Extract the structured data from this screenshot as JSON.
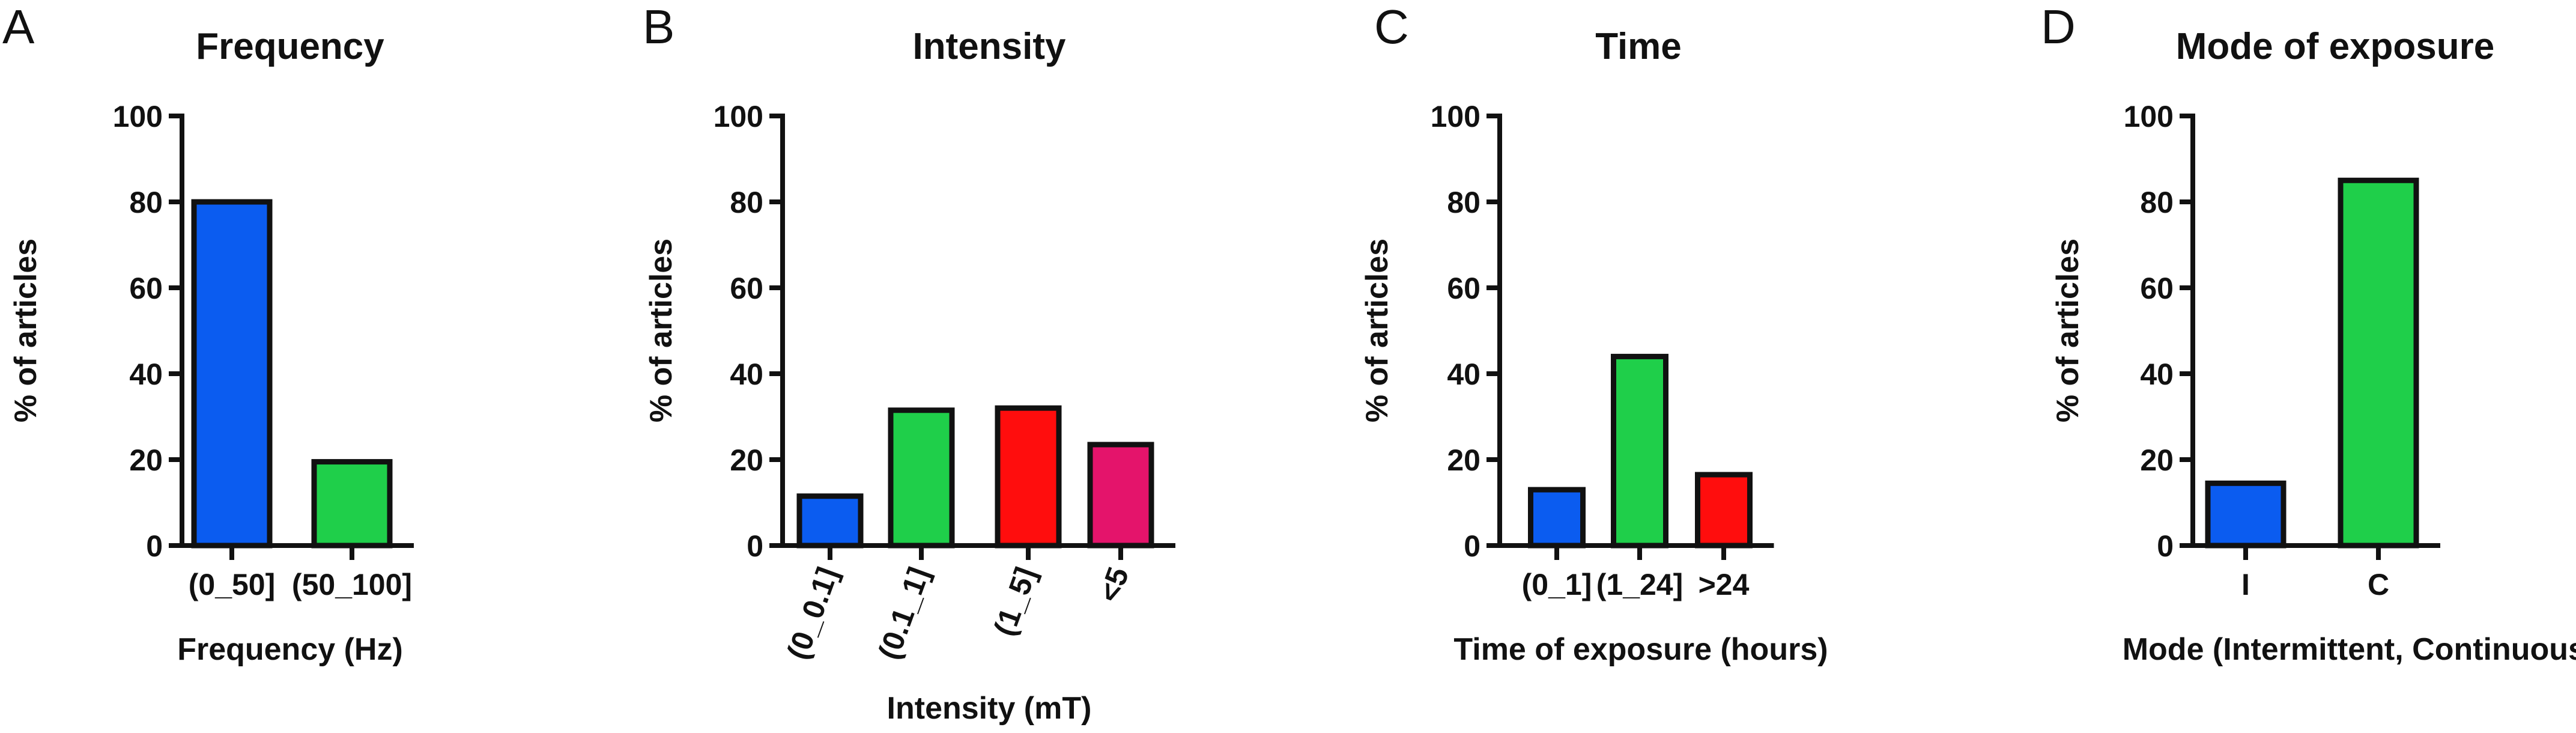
{
  "chart_data": [
    {
      "panel": "A",
      "type": "bar",
      "title": "Frequency",
      "xlabel": "Frequency (Hz)",
      "ylabel": "% of articles",
      "ylim": [
        0,
        100
      ],
      "yticks": [
        "0",
        "20",
        "40",
        "60",
        "80",
        "100"
      ],
      "xtick_rotation": 0,
      "categories": [
        "(0_50]",
        "(50_100]"
      ],
      "values": [
        80,
        19.5
      ],
      "colors": [
        "#0b5cf0",
        "#1fcf4a"
      ]
    },
    {
      "panel": "B",
      "type": "bar",
      "title": "Intensity",
      "xlabel": "Intensity (mT)",
      "ylabel": "% of articles",
      "ylim": [
        0,
        100
      ],
      "yticks": [
        "0",
        "20",
        "40",
        "60",
        "80",
        "100"
      ],
      "xtick_rotation": -70,
      "categories": [
        "(0_0.1]",
        "(0.1_1]",
        "(1_5]",
        "<5"
      ],
      "values": [
        11.5,
        31.5,
        32,
        23.5
      ],
      "colors": [
        "#0b5cf0",
        "#1fcf4a",
        "#ff0d0d",
        "#e4146b"
      ]
    },
    {
      "panel": "C",
      "type": "bar",
      "title": "Time",
      "xlabel": "Time of exposure (hours)",
      "ylabel": "% of articles",
      "ylim": [
        0,
        100
      ],
      "yticks": [
        "0",
        "20",
        "40",
        "60",
        "80",
        "100"
      ],
      "xtick_rotation": 0,
      "categories": [
        "(0_1]",
        "(1_24]",
        ">24"
      ],
      "values": [
        13,
        44,
        16.5
      ],
      "colors": [
        "#0b5cf0",
        "#1fcf4a",
        "#ff0d0d"
      ]
    },
    {
      "panel": "D",
      "type": "bar",
      "title": "Mode of exposure",
      "xlabel": "Mode (Intermittent, Continuous)",
      "ylabel": "% of articles",
      "ylim": [
        0,
        100
      ],
      "yticks": [
        "0",
        "20",
        "40",
        "60",
        "80",
        "100"
      ],
      "xtick_rotation": 0,
      "categories": [
        "I",
        "C"
      ],
      "values": [
        14.5,
        85
      ],
      "colors": [
        "#0b5cf0",
        "#1fcf4a"
      ]
    }
  ]
}
